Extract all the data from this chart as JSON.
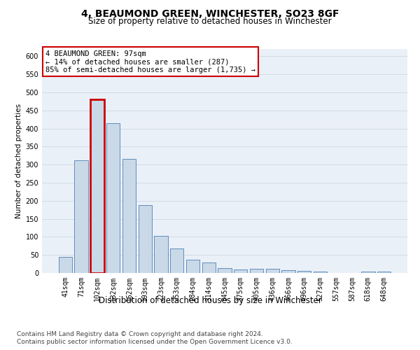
{
  "title": "4, BEAUMOND GREEN, WINCHESTER, SO23 8GF",
  "subtitle": "Size of property relative to detached houses in Winchester",
  "xlabel": "Distribution of detached houses by size in Winchester",
  "ylabel": "Number of detached properties",
  "categories": [
    "41sqm",
    "71sqm",
    "102sqm",
    "132sqm",
    "162sqm",
    "193sqm",
    "223sqm",
    "253sqm",
    "284sqm",
    "314sqm",
    "345sqm",
    "375sqm",
    "405sqm",
    "436sqm",
    "466sqm",
    "496sqm",
    "527sqm",
    "557sqm",
    "587sqm",
    "618sqm",
    "648sqm"
  ],
  "values": [
    45,
    312,
    480,
    415,
    315,
    188,
    102,
    68,
    37,
    30,
    13,
    10,
    12,
    12,
    8,
    5,
    3,
    0,
    0,
    3,
    4
  ],
  "bar_color": "#c9d9e8",
  "bar_edge_color": "#4f7fb5",
  "highlight_bar_index": 2,
  "highlight_bar_edge_color": "#cc0000",
  "annotation_box_text": "4 BEAUMOND GREEN: 97sqm\n← 14% of detached houses are smaller (287)\n85% of semi-detached houses are larger (1,735) →",
  "annotation_fontsize": 7.5,
  "ylim": [
    0,
    620
  ],
  "yticks": [
    0,
    50,
    100,
    150,
    200,
    250,
    300,
    350,
    400,
    450,
    500,
    550,
    600
  ],
  "grid_color": "#d0dce8",
  "bg_color": "#eaf0f7",
  "footnote1": "Contains HM Land Registry data © Crown copyright and database right 2024.",
  "footnote2": "Contains public sector information licensed under the Open Government Licence v3.0.",
  "title_fontsize": 10,
  "subtitle_fontsize": 8.5,
  "xlabel_fontsize": 8.5,
  "ylabel_fontsize": 7.5,
  "tick_fontsize": 7,
  "footnote_fontsize": 6.5
}
